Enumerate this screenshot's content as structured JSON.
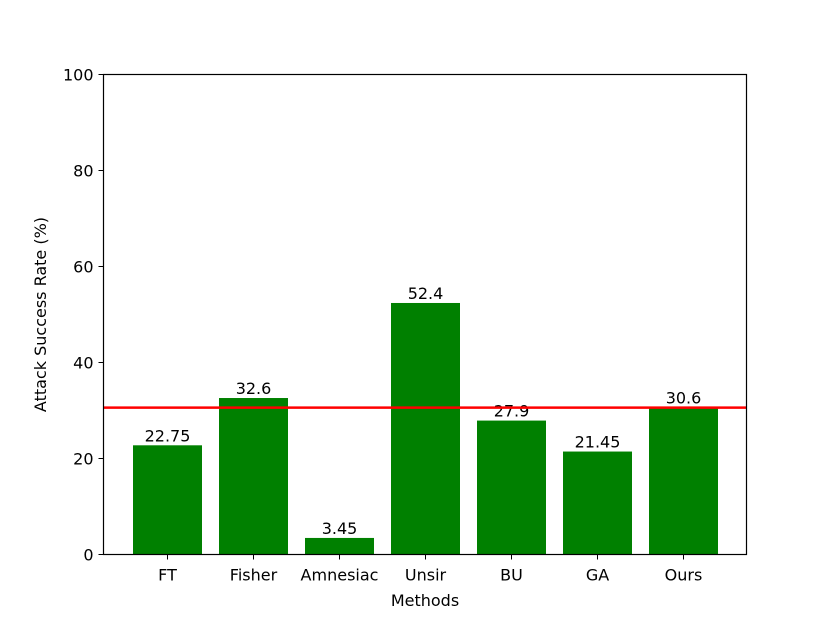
{
  "chart_data": {
    "type": "bar",
    "categories": [
      "FT",
      "Fisher",
      "Amnesiac",
      "Unsir",
      "BU",
      "GA",
      "Ours"
    ],
    "values": [
      22.75,
      32.6,
      3.45,
      52.4,
      27.9,
      21.45,
      30.6
    ],
    "value_labels": [
      "22.75",
      "32.6",
      "3.45",
      "52.4",
      "27.9",
      "21.45",
      "30.6"
    ],
    "xlabel": "Methods",
    "ylabel": "Attack Success Rate (%)",
    "ylim": [
      0,
      100
    ],
    "yticks": [
      0,
      20,
      40,
      60,
      80,
      100
    ],
    "reference_line": {
      "y": 30.6,
      "color": "#ff0000"
    },
    "bar_color": "#008000",
    "grid": false
  }
}
